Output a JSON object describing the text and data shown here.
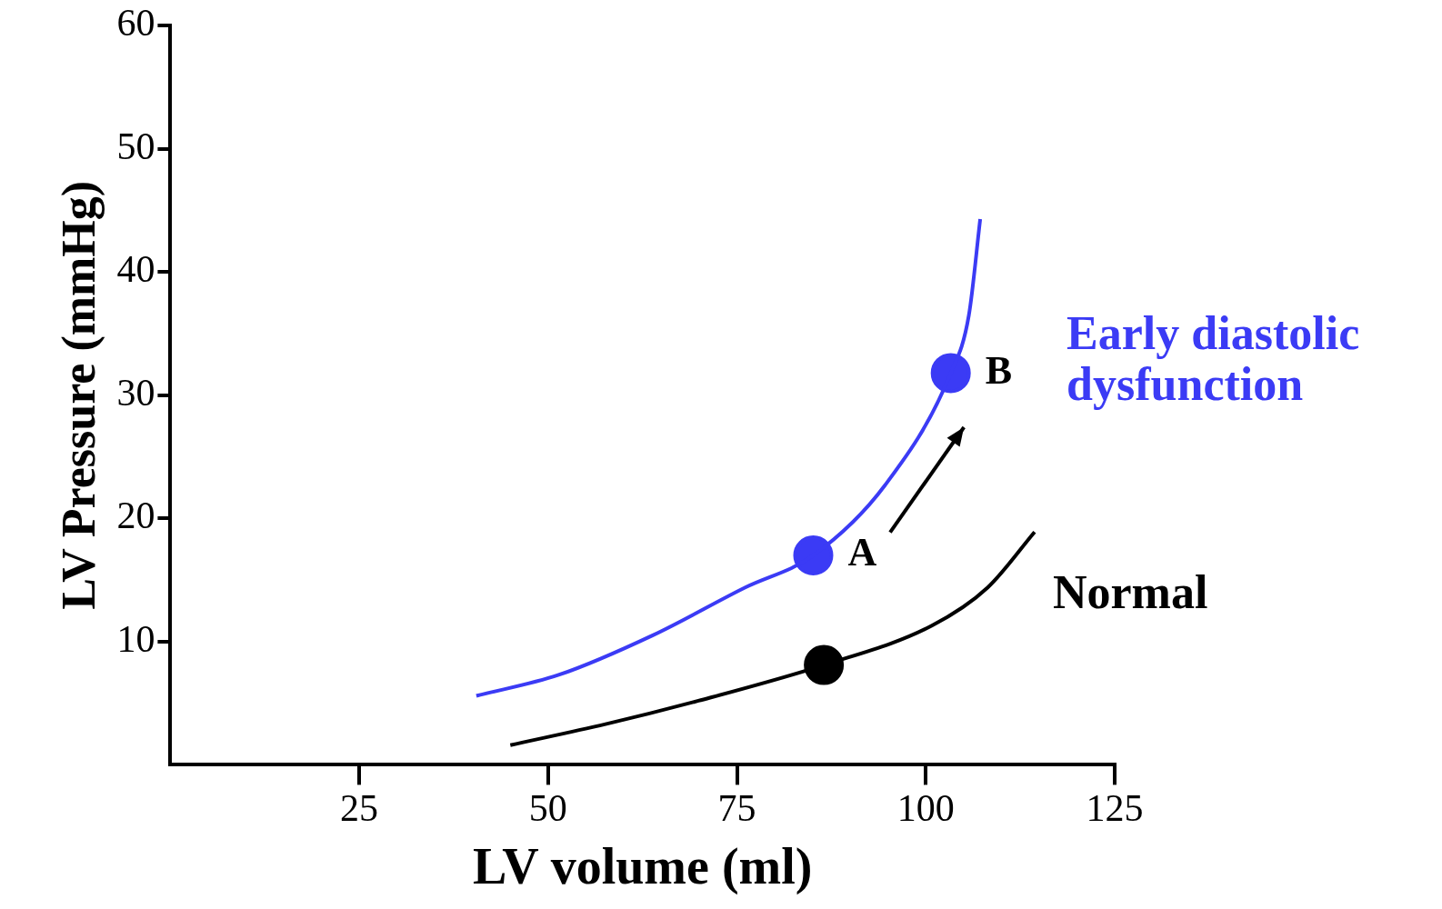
{
  "chart_data": {
    "type": "line",
    "xlabel": "LV volume (ml)",
    "ylabel": "LV Pressure (mmHg)",
    "xlim": [
      0,
      125
    ],
    "xticks": [
      25,
      50,
      75,
      100,
      125
    ],
    "ylim": [
      0,
      60
    ],
    "yticks": [
      10,
      20,
      30,
      40,
      50,
      60
    ],
    "grid": false,
    "legend": false,
    "marker": "none",
    "series": [
      {
        "name": "Early diastolic dysfunction",
        "color": "#3b3bf5",
        "x": [
          40.5,
          51.4,
          63.8,
          76.1,
          85.1,
          94.6,
          103.3,
          105.7,
          107.2
        ],
        "values": [
          5.6,
          7.3,
          10.5,
          14.4,
          17.0,
          22.7,
          31.8,
          36.5,
          44.3
        ]
      },
      {
        "name": "Normal",
        "color": "#000000",
        "x": [
          45,
          57.6,
          69.9,
          86.5,
          100.8,
          108.2,
          114.4
        ],
        "values": [
          1.6,
          3.3,
          5.2,
          8.1,
          11.3,
          14.4,
          18.9
        ]
      },
      {
        "type": "scatter",
        "marker": "circle",
        "color": "#3b3bf5",
        "x": [
          85.1,
          103.3
        ],
        "values": [
          17.0,
          31.8
        ]
      },
      {
        "type": "scatter",
        "marker": "circle",
        "color": "#000000",
        "x": [
          86.5
        ],
        "values": [
          8.1
        ]
      }
    ],
    "annotations": [
      {
        "text": "A",
        "x": 85.1,
        "y": 17.0
      },
      {
        "text": "B",
        "x": 103.3,
        "y": 31.8
      }
    ]
  }
}
